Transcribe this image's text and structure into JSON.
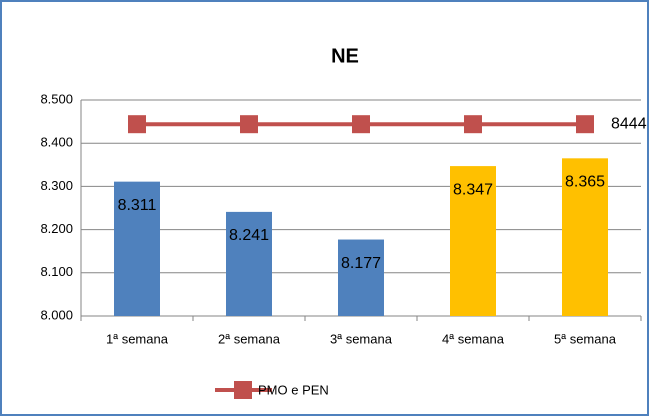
{
  "chart_data": {
    "type": "bar",
    "title": "NE",
    "categories": [
      "1ª semana",
      "2ª semana",
      "3ª semana",
      "4ª semana",
      "5ª semana"
    ],
    "values": [
      8311,
      8241,
      8177,
      8347,
      8365
    ],
    "value_labels": [
      "8.311",
      "8.241",
      "8.177",
      "8.347",
      "8.365"
    ],
    "colors": [
      "#4f81bd",
      "#4f81bd",
      "#4f81bd",
      "#ffc000",
      "#ffc000"
    ],
    "line_series": {
      "name": "PMO e PEN",
      "color": "#c0504d",
      "values": [
        8444,
        8444,
        8444,
        8444,
        8444
      ],
      "value_labels": [
        null,
        null,
        null,
        null,
        "8444"
      ]
    },
    "ylim": [
      8000,
      8500
    ],
    "yticks": [
      {
        "value": 8000,
        "label": "8.000"
      },
      {
        "value": 8100,
        "label": "8.100"
      },
      {
        "value": 8200,
        "label": "8.200"
      },
      {
        "value": 8300,
        "label": "8.300"
      },
      {
        "value": 8400,
        "label": "8.400"
      },
      {
        "value": 8500,
        "label": "8.500"
      }
    ],
    "grid": true,
    "legend": "bottom"
  }
}
